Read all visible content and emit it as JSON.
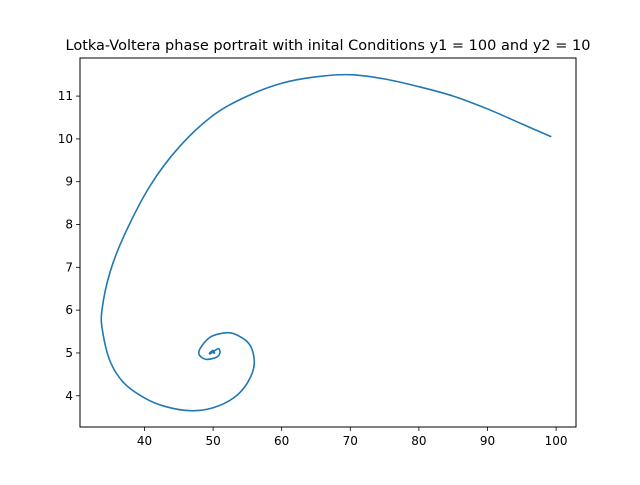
{
  "chart_data": {
    "type": "line",
    "title": "Lotka-Voltera phase portrait with inital Conditions y1 = 100 and y2 = 10",
    "xlabel": "",
    "ylabel": "",
    "xlim": [
      30.6,
      102.9
    ],
    "ylim": [
      3.27,
      11.89
    ],
    "xticks": [
      40,
      50,
      60,
      70,
      80,
      90,
      100
    ],
    "yticks": [
      4,
      5,
      6,
      7,
      8,
      9,
      10,
      11
    ],
    "grid": false,
    "line_color": "#1f77b4",
    "series": [
      {
        "x": [
          99.3,
          95,
          90,
          85,
          80,
          75,
          70,
          65,
          60,
          55,
          50,
          45,
          40.8,
          37.2,
          35,
          33.8,
          33.9,
          35,
          37,
          40,
          43,
          46.7,
          50,
          53,
          55,
          56,
          55.3,
          53,
          51,
          49.4,
          48.1,
          48,
          49,
          50.5,
          51,
          50.8,
          50.2,
          49.6,
          49.5,
          50,
          50.2,
          50
        ],
        "y": [
          10.05,
          10.35,
          10.7,
          11.0,
          11.22,
          11.4,
          11.5,
          11.45,
          11.3,
          11.0,
          10.55,
          9.8,
          8.9,
          7.8,
          6.9,
          6.0,
          5.5,
          4.8,
          4.3,
          3.95,
          3.75,
          3.65,
          3.72,
          3.95,
          4.3,
          4.75,
          5.2,
          5.45,
          5.45,
          5.35,
          5.1,
          4.95,
          4.85,
          4.9,
          5.0,
          5.1,
          5.05,
          4.98,
          5.0,
          5.06,
          5.0,
          5.0
        ]
      }
    ]
  }
}
